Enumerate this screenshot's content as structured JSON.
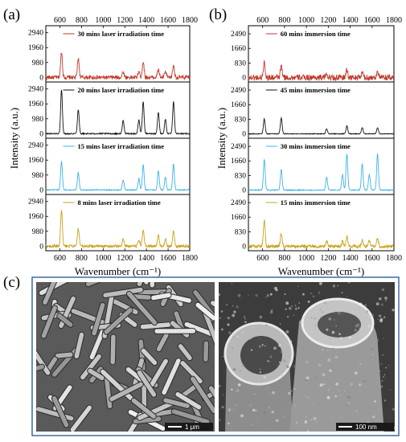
{
  "figure": {
    "panel_labels": [
      "(a)",
      "(b)",
      "(c)"
    ],
    "frame_color": "#3a6aa8"
  },
  "chart_data": [
    {
      "type": "line",
      "panel": "(a)",
      "xlabel": "Wavenumber (cm⁻¹)",
      "ylabel": "Intensity (a.u.)",
      "xlim": [
        470,
        1800
      ],
      "xticks": [
        600,
        800,
        1000,
        1200,
        1400,
        1600,
        1800
      ],
      "ylim": [
        -300,
        3400
      ],
      "yticks": [
        0,
        980,
        1960,
        2940
      ],
      "grid": false,
      "series": [
        {
          "name": "30 mins laser irradiation time",
          "color": "#c0392b",
          "peaks": [
            [
              615,
              1700
            ],
            [
              770,
              1250
            ],
            [
              1185,
              380
            ],
            [
              1330,
              400
            ],
            [
              1370,
              1050
            ],
            [
              1510,
              520
            ],
            [
              1575,
              380
            ],
            [
              1650,
              800
            ]
          ],
          "noise": 130
        },
        {
          "name": "20 mins laser irradiation time",
          "color": "#111111",
          "peaks": [
            [
              615,
              2900
            ],
            [
              770,
              1600
            ],
            [
              1185,
              880
            ],
            [
              1330,
              900
            ],
            [
              1370,
              2100
            ],
            [
              1510,
              1400
            ],
            [
              1575,
              950
            ],
            [
              1650,
              2100
            ]
          ],
          "noise": 40
        },
        {
          "name": "15 mins laser irradiation time",
          "color": "#3fb3e6",
          "peaks": [
            [
              615,
              1900
            ],
            [
              770,
              1150
            ],
            [
              1185,
              650
            ],
            [
              1330,
              750
            ],
            [
              1370,
              1650
            ],
            [
              1510,
              1250
            ],
            [
              1575,
              850
            ],
            [
              1650,
              1700
            ]
          ],
          "noise": 35
        },
        {
          "name": "8 mins laser irradiation time",
          "color": "#c8a21a",
          "peaks": [
            [
              615,
              2450
            ],
            [
              770,
              1150
            ],
            [
              1185,
              500
            ],
            [
              1330,
              450
            ],
            [
              1370,
              1050
            ],
            [
              1510,
              750
            ],
            [
              1575,
              500
            ],
            [
              1650,
              1050
            ]
          ],
          "noise": 90
        }
      ]
    },
    {
      "type": "line",
      "panel": "(b)",
      "xlabel": "Wavenumber (cm⁻¹)",
      "ylabel": "Intensity (a.u.)",
      "xlim": [
        470,
        1800
      ],
      "xticks": [
        600,
        800,
        1000,
        1200,
        1400,
        1600,
        1800
      ],
      "ylim": [
        -250,
        2950
      ],
      "yticks": [
        0,
        830,
        1660,
        2490
      ],
      "grid": false,
      "series": [
        {
          "name": "60 mins immersion time",
          "color": "#c0392b",
          "peaks": [
            [
              615,
              900
            ],
            [
              770,
              650
            ],
            [
              1185,
              250
            ],
            [
              1370,
              450
            ],
            [
              1510,
              300
            ],
            [
              1650,
              380
            ]
          ],
          "noise": 170
        },
        {
          "name": "45 mins immersion time",
          "color": "#111111",
          "peaks": [
            [
              615,
              850
            ],
            [
              770,
              900
            ],
            [
              1185,
              280
            ],
            [
              1370,
              450
            ],
            [
              1510,
              350
            ],
            [
              1650,
              350
            ]
          ],
          "noise": 20
        },
        {
          "name": "30 mins immersion time",
          "color": "#3fb3e6",
          "peaks": [
            [
              615,
              1750
            ],
            [
              770,
              1200
            ],
            [
              1185,
              750
            ],
            [
              1330,
              900
            ],
            [
              1370,
              2050
            ],
            [
              1510,
              1500
            ],
            [
              1575,
              900
            ],
            [
              1650,
              2050
            ]
          ],
          "noise": 30
        },
        {
          "name": "15 mins immersion time",
          "color": "#c8a21a",
          "peaks": [
            [
              615,
              1500
            ],
            [
              770,
              700
            ],
            [
              1185,
              300
            ],
            [
              1330,
              300
            ],
            [
              1370,
              550
            ],
            [
              1510,
              400
            ],
            [
              1575,
              300
            ],
            [
              1650,
              450
            ]
          ],
          "noise": 90
        }
      ]
    }
  ],
  "images": [
    {
      "scale_label": "1 μm"
    },
    {
      "scale_label": "100 nm"
    }
  ]
}
